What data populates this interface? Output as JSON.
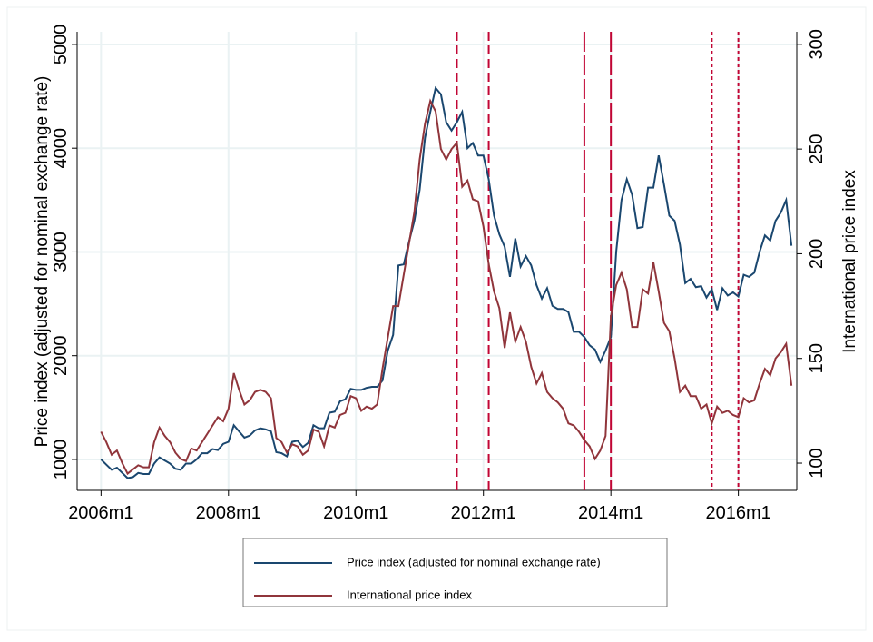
{
  "chart_data": {
    "type": "line",
    "x": [
      552,
      553,
      554,
      555,
      556,
      557,
      558,
      559,
      560,
      561,
      562,
      563,
      564,
      565,
      566,
      567,
      568,
      569,
      570,
      571,
      572,
      573,
      574,
      575,
      576,
      577,
      578,
      579,
      580,
      581,
      582,
      583,
      584,
      585,
      586,
      587,
      588,
      589,
      590,
      591,
      592,
      593,
      594,
      595,
      596,
      597,
      598,
      599,
      600,
      601,
      602,
      603,
      604,
      605,
      606,
      607,
      608,
      609,
      610,
      611,
      612,
      613,
      614,
      615,
      616,
      617,
      618,
      619,
      620,
      621,
      622,
      623,
      624,
      625,
      626,
      627,
      628,
      629,
      630,
      631,
      632,
      633,
      634,
      635,
      636,
      637,
      638,
      639,
      640,
      641,
      642,
      643,
      644,
      645,
      646,
      647,
      648,
      649,
      650,
      651,
      652,
      653,
      654,
      655,
      656,
      657,
      658,
      659,
      660,
      661,
      662,
      663,
      664,
      665,
      666,
      667,
      668,
      669,
      670,
      671,
      672,
      673,
      674,
      675,
      676,
      677,
      678,
      679,
      680,
      681,
      682
    ],
    "series": [
      {
        "name": "Price index (adjusted for nominal exchange rate)",
        "color": "#1a476f",
        "axis": "y",
        "values": [
          1000,
          950,
          900,
          920,
          870,
          820,
          830,
          870,
          860,
          860,
          960,
          1020,
          990,
          960,
          910,
          900,
          960,
          960,
          1000,
          1060,
          1060,
          1100,
          1090,
          1150,
          1170,
          1330,
          1270,
          1210,
          1230,
          1280,
          1300,
          1290,
          1270,
          1070,
          1060,
          1030,
          1170,
          1180,
          1120,
          1160,
          1330,
          1300,
          1300,
          1450,
          1460,
          1560,
          1580,
          1680,
          1670,
          1670,
          1690,
          1700,
          1700,
          1760,
          2050,
          2200,
          2870,
          2880,
          3100,
          3300,
          3600,
          4100,
          4350,
          4580,
          4520,
          4250,
          4170,
          4250,
          4350,
          4000,
          4050,
          3930,
          3930,
          3700,
          3350,
          3170,
          3050,
          2760,
          3130,
          2860,
          2960,
          2870,
          2680,
          2550,
          2650,
          2480,
          2450,
          2450,
          2420,
          2230,
          2230,
          2180,
          2100,
          2060,
          1940,
          2050,
          2180,
          3000,
          3500,
          3700,
          3550,
          3230,
          3240,
          3620,
          3620,
          3930,
          3650,
          3350,
          3300,
          3070,
          2700,
          2740,
          2660,
          2670,
          2560,
          2640,
          2440,
          2650,
          2580,
          2610,
          2570,
          2780,
          2760,
          2800,
          3000,
          3160,
          3110,
          3300,
          3380,
          3500,
          3060
        ]
      },
      {
        "name": "International price index",
        "color": "#90353b",
        "axis": "y2",
        "values": [
          115,
          110,
          104,
          106,
          100,
          95,
          97,
          99,
          98,
          98,
          110,
          117,
          113,
          110,
          105,
          102,
          101,
          107,
          106,
          110,
          114,
          118,
          122,
          120,
          126,
          143,
          135,
          128,
          130,
          134,
          135,
          134,
          131,
          112,
          110,
          105,
          109,
          108,
          104,
          106,
          116,
          115,
          108,
          118,
          117,
          123,
          124,
          132,
          131,
          125,
          127,
          126,
          128,
          145,
          160,
          175,
          175,
          190,
          205,
          220,
          245,
          262,
          273,
          268,
          250,
          245,
          250,
          253,
          232,
          235,
          226,
          225,
          213,
          195,
          182,
          174,
          155,
          172,
          158,
          165,
          158,
          146,
          138,
          143,
          134,
          131,
          129,
          126,
          119,
          118,
          115,
          111,
          108,
          102,
          106,
          113,
          170,
          185,
          191,
          183,
          165,
          165,
          183,
          181,
          196,
          182,
          167,
          163,
          150,
          134,
          137,
          132,
          132,
          126,
          128,
          119,
          127,
          124,
          125,
          123,
          122,
          131,
          129,
          130,
          138,
          145,
          142,
          150,
          153,
          157,
          137
        ]
      }
    ],
    "reference_lines": [
      {
        "x": 619,
        "style": "dashed"
      },
      {
        "x": 625,
        "style": "dashed"
      },
      {
        "x": 643,
        "style": "longdash"
      },
      {
        "x": 648,
        "style": "longdash"
      },
      {
        "x": 667,
        "style": "dotted"
      },
      {
        "x": 672,
        "style": "dotted"
      }
    ],
    "reference_color": "#c10534",
    "xlim": [
      547.5,
      683
    ],
    "xticks": [
      {
        "value": 552,
        "label": "2006m1"
      },
      {
        "value": 576,
        "label": "2008m1"
      },
      {
        "value": 600,
        "label": "2010m1"
      },
      {
        "value": 624,
        "label": "2012m1"
      },
      {
        "value": 648,
        "label": "2014m1"
      },
      {
        "value": 672,
        "label": "2016m1"
      }
    ],
    "ylim": [
      702,
      5122
    ],
    "yticks": [
      1000,
      2000,
      3000,
      4000,
      5000
    ],
    "y2lim": [
      87,
      306
    ],
    "y2ticks": [
      100,
      150,
      200,
      250,
      300
    ],
    "ylabel": "Price index (adjusted for nominal exchange rate)",
    "y2label": "International price index",
    "grid": true
  }
}
